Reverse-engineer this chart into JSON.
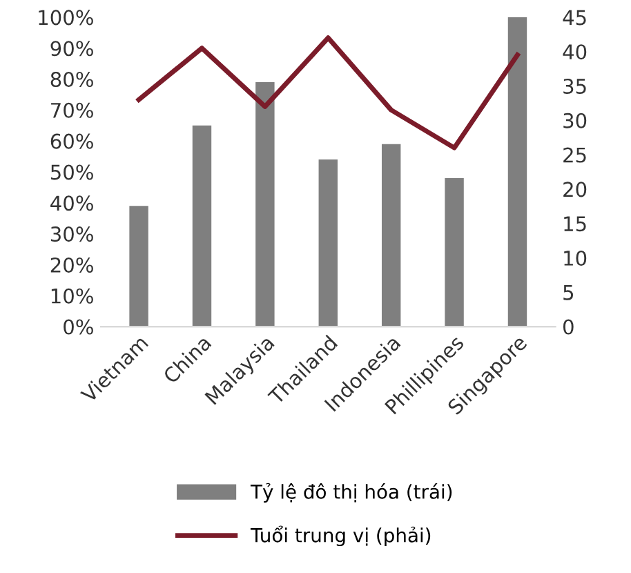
{
  "chart_data": {
    "type": "bar",
    "categories": [
      "Vietnam",
      "China",
      "Malaysia",
      "Thailand",
      "Indonesia",
      "Phillipines",
      "Singapore"
    ],
    "series": [
      {
        "name": "Tỷ lệ đô thị hóa (trái)",
        "color": "#7f7f7f",
        "values": [
          39,
          65,
          79,
          54,
          59,
          48,
          100
        ]
      },
      {
        "name": "Tuổi trung vị (phải)",
        "type": "line",
        "axis": "y2",
        "color": "#7b1c2a",
        "values": [
          33,
          40.5,
          32,
          42,
          31.5,
          26,
          39.5
        ]
      }
    ],
    "ylim": [
      0,
      100
    ],
    "yticks": [
      {
        "value": 0,
        "label": "0%"
      },
      {
        "value": 10,
        "label": "10%"
      },
      {
        "value": 20,
        "label": "20%"
      },
      {
        "value": 30,
        "label": "30%"
      },
      {
        "value": 40,
        "label": "40%"
      },
      {
        "value": 50,
        "label": "50%"
      },
      {
        "value": 60,
        "label": "60%"
      },
      {
        "value": 70,
        "label": "70%"
      },
      {
        "value": 80,
        "label": "80%"
      },
      {
        "value": 90,
        "label": "90%"
      },
      {
        "value": 100,
        "label": "100%"
      }
    ],
    "y2lim": [
      0,
      45
    ],
    "y2ticks": [
      0,
      5,
      10,
      15,
      20,
      25,
      30,
      35,
      40,
      45
    ],
    "grid": false,
    "legend": "bottom",
    "marker": "none",
    "line_style": "solid"
  }
}
